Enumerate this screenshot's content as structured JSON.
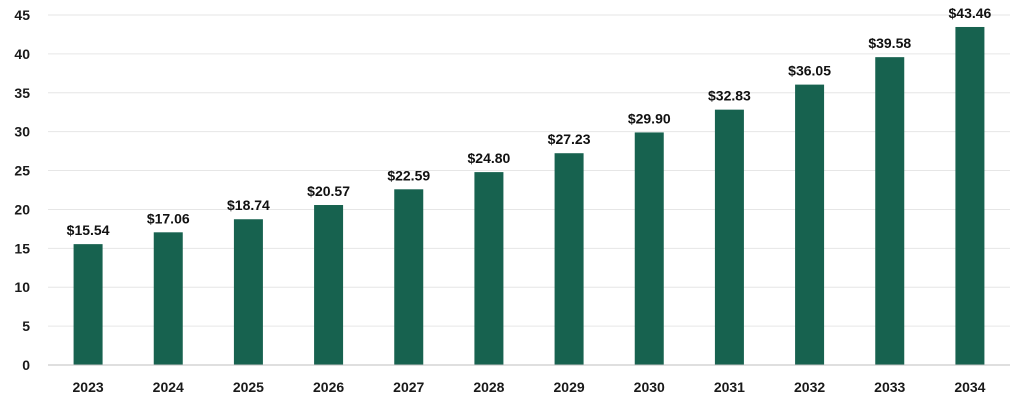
{
  "chart_data": {
    "type": "bar",
    "categories": [
      "2023",
      "2024",
      "2025",
      "2026",
      "2027",
      "2028",
      "2029",
      "2030",
      "2031",
      "2032",
      "2033",
      "2034"
    ],
    "values": [
      15.54,
      17.06,
      18.74,
      20.57,
      22.59,
      24.8,
      27.23,
      29.9,
      32.83,
      36.05,
      39.58,
      43.46
    ],
    "data_labels": [
      "$15.54",
      "$17.06",
      "$18.74",
      "$20.57",
      "$22.59",
      "$24.80",
      "$27.23",
      "$29.90",
      "$32.83",
      "$36.05",
      "$39.58",
      "$43.46"
    ],
    "y_ticks": [
      "0",
      "5",
      "10",
      "15",
      "20",
      "25",
      "30",
      "35",
      "40",
      "45"
    ],
    "ylim": [
      0,
      45
    ],
    "title": "",
    "xlabel": "",
    "ylabel": "",
    "grid": true,
    "legend": "none",
    "bar_color": "#17624f"
  }
}
